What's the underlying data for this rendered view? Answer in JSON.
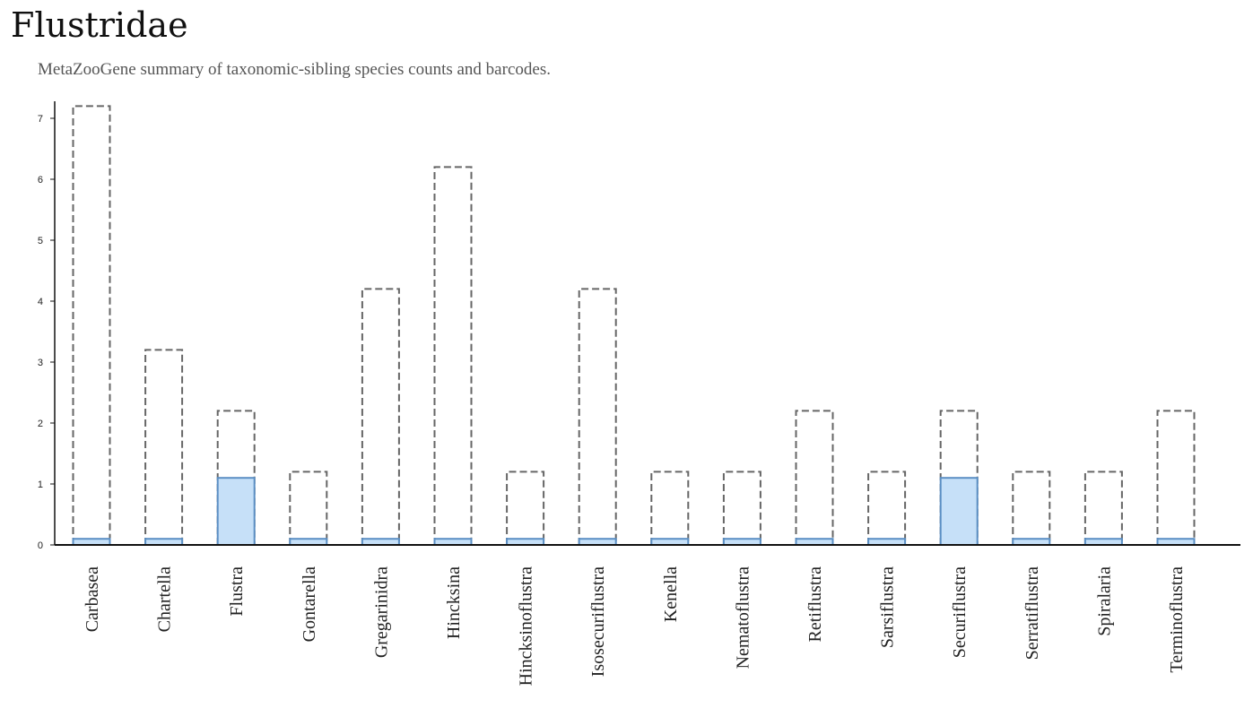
{
  "page": {
    "title": "Flustridae",
    "subtitle": "MetaZooGene summary of taxonomic-sibling species counts and barcodes."
  },
  "colors": {
    "species_outline": "#666666",
    "barcode_fill": "#c6e0f8",
    "barcode_stroke": "#5b8fc4",
    "axis": "#111111"
  },
  "chart_data": {
    "type": "bar",
    "categories": [
      "Carbasea",
      "Chartella",
      "Flustra",
      "Gontarella",
      "Gregarinidra",
      "Hincksina",
      "Hincksinoflustra",
      "Isosecuriflustra",
      "Kenella",
      "Nematoflustra",
      "Retiflustra",
      "Sarsiflustra",
      "Securiflustra",
      "Serratiflustra",
      "Spiralaria",
      "Terminoflustra"
    ],
    "series": [
      {
        "style": "dashed-outline",
        "values": [
          7.2,
          3.2,
          2.2,
          1.2,
          4.2,
          6.2,
          1.2,
          4.2,
          1.2,
          1.2,
          2.2,
          1.2,
          2.2,
          1.2,
          1.2,
          2.2
        ]
      },
      {
        "style": "filled",
        "values": [
          0.1,
          0.1,
          1.1,
          0.1,
          0.1,
          0.1,
          0.1,
          0.1,
          0.1,
          0.1,
          0.1,
          0.1,
          1.1,
          0.1,
          0.1,
          0.1
        ]
      }
    ],
    "yticks": [
      0,
      1,
      2,
      3,
      4,
      5,
      6,
      7
    ],
    "ylim": [
      0,
      7.3
    ],
    "xlabel": "",
    "ylabel": "",
    "grid": false,
    "legend": false
  }
}
